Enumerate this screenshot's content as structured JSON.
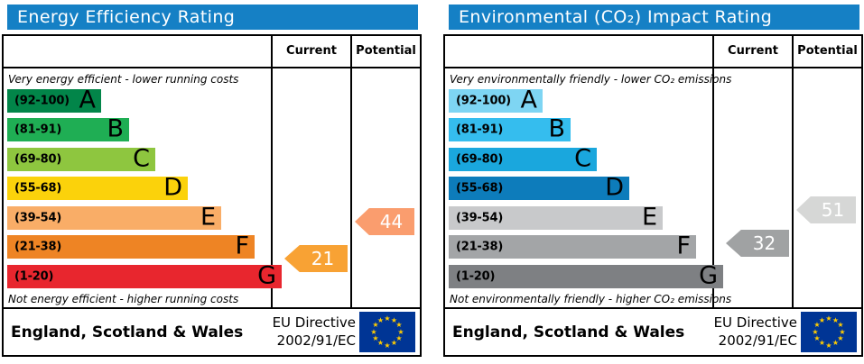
{
  "colors": {
    "header_blue": "#1580c5"
  },
  "flag": {
    "background": "#003595",
    "star_color": "#ffcc00"
  },
  "panels": [
    {
      "title": "Energy Efficiency Rating",
      "columns": {
        "current": "Current",
        "potential": "Potential"
      },
      "top_note": "Very energy efficient - lower running costs",
      "bottom_note": "Not energy efficient - higher running costs",
      "bands": [
        {
          "range": "(92-100)",
          "letter": "A",
          "color": "#028549"
        },
        {
          "range": "(81-91)",
          "letter": "B",
          "color": "#1fae54"
        },
        {
          "range": "(69-80)",
          "letter": "C",
          "color": "#8ec63f"
        },
        {
          "range": "(55-68)",
          "letter": "D",
          "color": "#fbd20b"
        },
        {
          "range": "(39-54)",
          "letter": "E",
          "color": "#f9ad67"
        },
        {
          "range": "(21-38)",
          "letter": "F",
          "color": "#ee8424"
        },
        {
          "range": "(1-20)",
          "letter": "G",
          "color": "#e8262e"
        }
      ],
      "current": {
        "label": "21",
        "color": "#f8a234"
      },
      "potential": {
        "label": "44",
        "color": "#fa9d6e"
      },
      "footer": {
        "region": "England, Scotland & Wales",
        "directive_line1": "EU Directive",
        "directive_line2": "2002/91/EC"
      }
    },
    {
      "title": "Environmental (CO₂) Impact Rating",
      "columns": {
        "current": "Current",
        "potential": "Potential"
      },
      "top_note": "Very environmentally friendly - lower CO₂ emissions",
      "bottom_note": "Not environmentally friendly - higher CO₂ emissions",
      "bands": [
        {
          "range": "(92-100)",
          "letter": "A",
          "color": "#7ed5f3"
        },
        {
          "range": "(81-91)",
          "letter": "B",
          "color": "#35bdee"
        },
        {
          "range": "(69-80)",
          "letter": "C",
          "color": "#1aa7dd"
        },
        {
          "range": "(55-68)",
          "letter": "D",
          "color": "#0d7cbb"
        },
        {
          "range": "(39-54)",
          "letter": "E",
          "color": "#c8c9cb"
        },
        {
          "range": "(21-38)",
          "letter": "F",
          "color": "#a3a5a7"
        },
        {
          "range": "(1-20)",
          "letter": "G",
          "color": "#7e8083"
        }
      ],
      "current": {
        "label": "32",
        "color": "#a0a2a3"
      },
      "potential": {
        "label": "51",
        "color": "#d6d7d6"
      },
      "footer": {
        "region": "England, Scotland & Wales",
        "directive_line1": "EU Directive",
        "directive_line2": "2002/91/EC"
      }
    }
  ],
  "chart_data": [
    {
      "type": "bar",
      "title": "Energy Efficiency Rating",
      "categories": [
        "A (92-100)",
        "B (81-91)",
        "C (69-80)",
        "D (55-68)",
        "E (39-54)",
        "F (21-38)",
        "G (1-20)"
      ],
      "series": [
        {
          "name": "Current",
          "values": [
            21
          ],
          "band": "F"
        },
        {
          "name": "Potential",
          "values": [
            44
          ],
          "band": "E"
        }
      ],
      "xlabel": "",
      "ylabel": "",
      "ylim": [
        1,
        100
      ],
      "annotations": [
        "Very energy efficient - lower running costs",
        "Not energy efficient - higher running costs",
        "England, Scotland & Wales",
        "EU Directive 2002/91/EC"
      ]
    },
    {
      "type": "bar",
      "title": "Environmental (CO₂) Impact Rating",
      "categories": [
        "A (92-100)",
        "B (81-91)",
        "C (69-80)",
        "D (55-68)",
        "E (39-54)",
        "F (21-38)",
        "G (1-20)"
      ],
      "series": [
        {
          "name": "Current",
          "values": [
            32
          ],
          "band": "F"
        },
        {
          "name": "Potential",
          "values": [
            51
          ],
          "band": "E"
        }
      ],
      "xlabel": "",
      "ylabel": "",
      "ylim": [
        1,
        100
      ],
      "annotations": [
        "Very environmentally friendly - lower CO₂ emissions",
        "Not environmentally friendly - higher CO₂ emissions",
        "England, Scotland & Wales",
        "EU Directive 2002/91/EC"
      ]
    }
  ]
}
